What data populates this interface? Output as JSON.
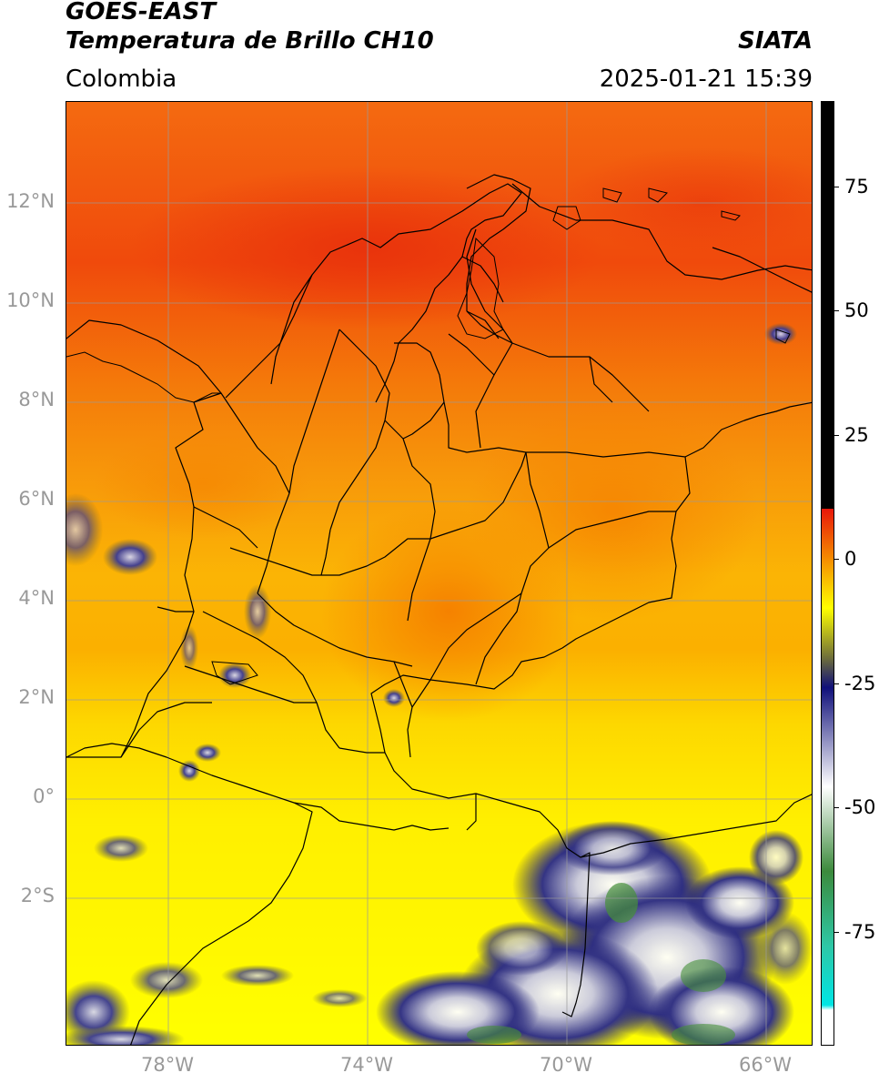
{
  "header": {
    "satellite": "GOES-EAST",
    "product": "Temperatura de Brillo CH10",
    "agency": "SIATA",
    "region": "Colombia",
    "timestamp": "2025-01-21 15:39"
  },
  "map": {
    "lat_labels": [
      "12°N",
      "10°N",
      "8°N",
      "6°N",
      "4°N",
      "2°N",
      "0°",
      "2°S"
    ],
    "lon_labels": [
      "78°W",
      "74°W",
      "70°W",
      "66°W"
    ],
    "extent": {
      "lon_min": -80.0,
      "lon_max": -65.0,
      "lat_min": -5.0,
      "lat_max": 14.0
    }
  },
  "colorbar": {
    "tick_labels": [
      "75",
      "50",
      "25",
      "0",
      "-25",
      "-50",
      "-75"
    ],
    "tick_values": [
      75,
      50,
      25,
      0,
      -25,
      -50,
      -75
    ],
    "range": [
      -100,
      90
    ],
    "colors": {
      "saturated": "#000000",
      "red": "#e8170a",
      "orange": "#f58b00",
      "yellow": "#ffff00",
      "olive": "#6f6f3a",
      "navy": "#10107a",
      "white": "#ffffff",
      "green": "#3c8a3c",
      "teal": "#2ec7a5",
      "cyan": "#00e5e5"
    }
  }
}
